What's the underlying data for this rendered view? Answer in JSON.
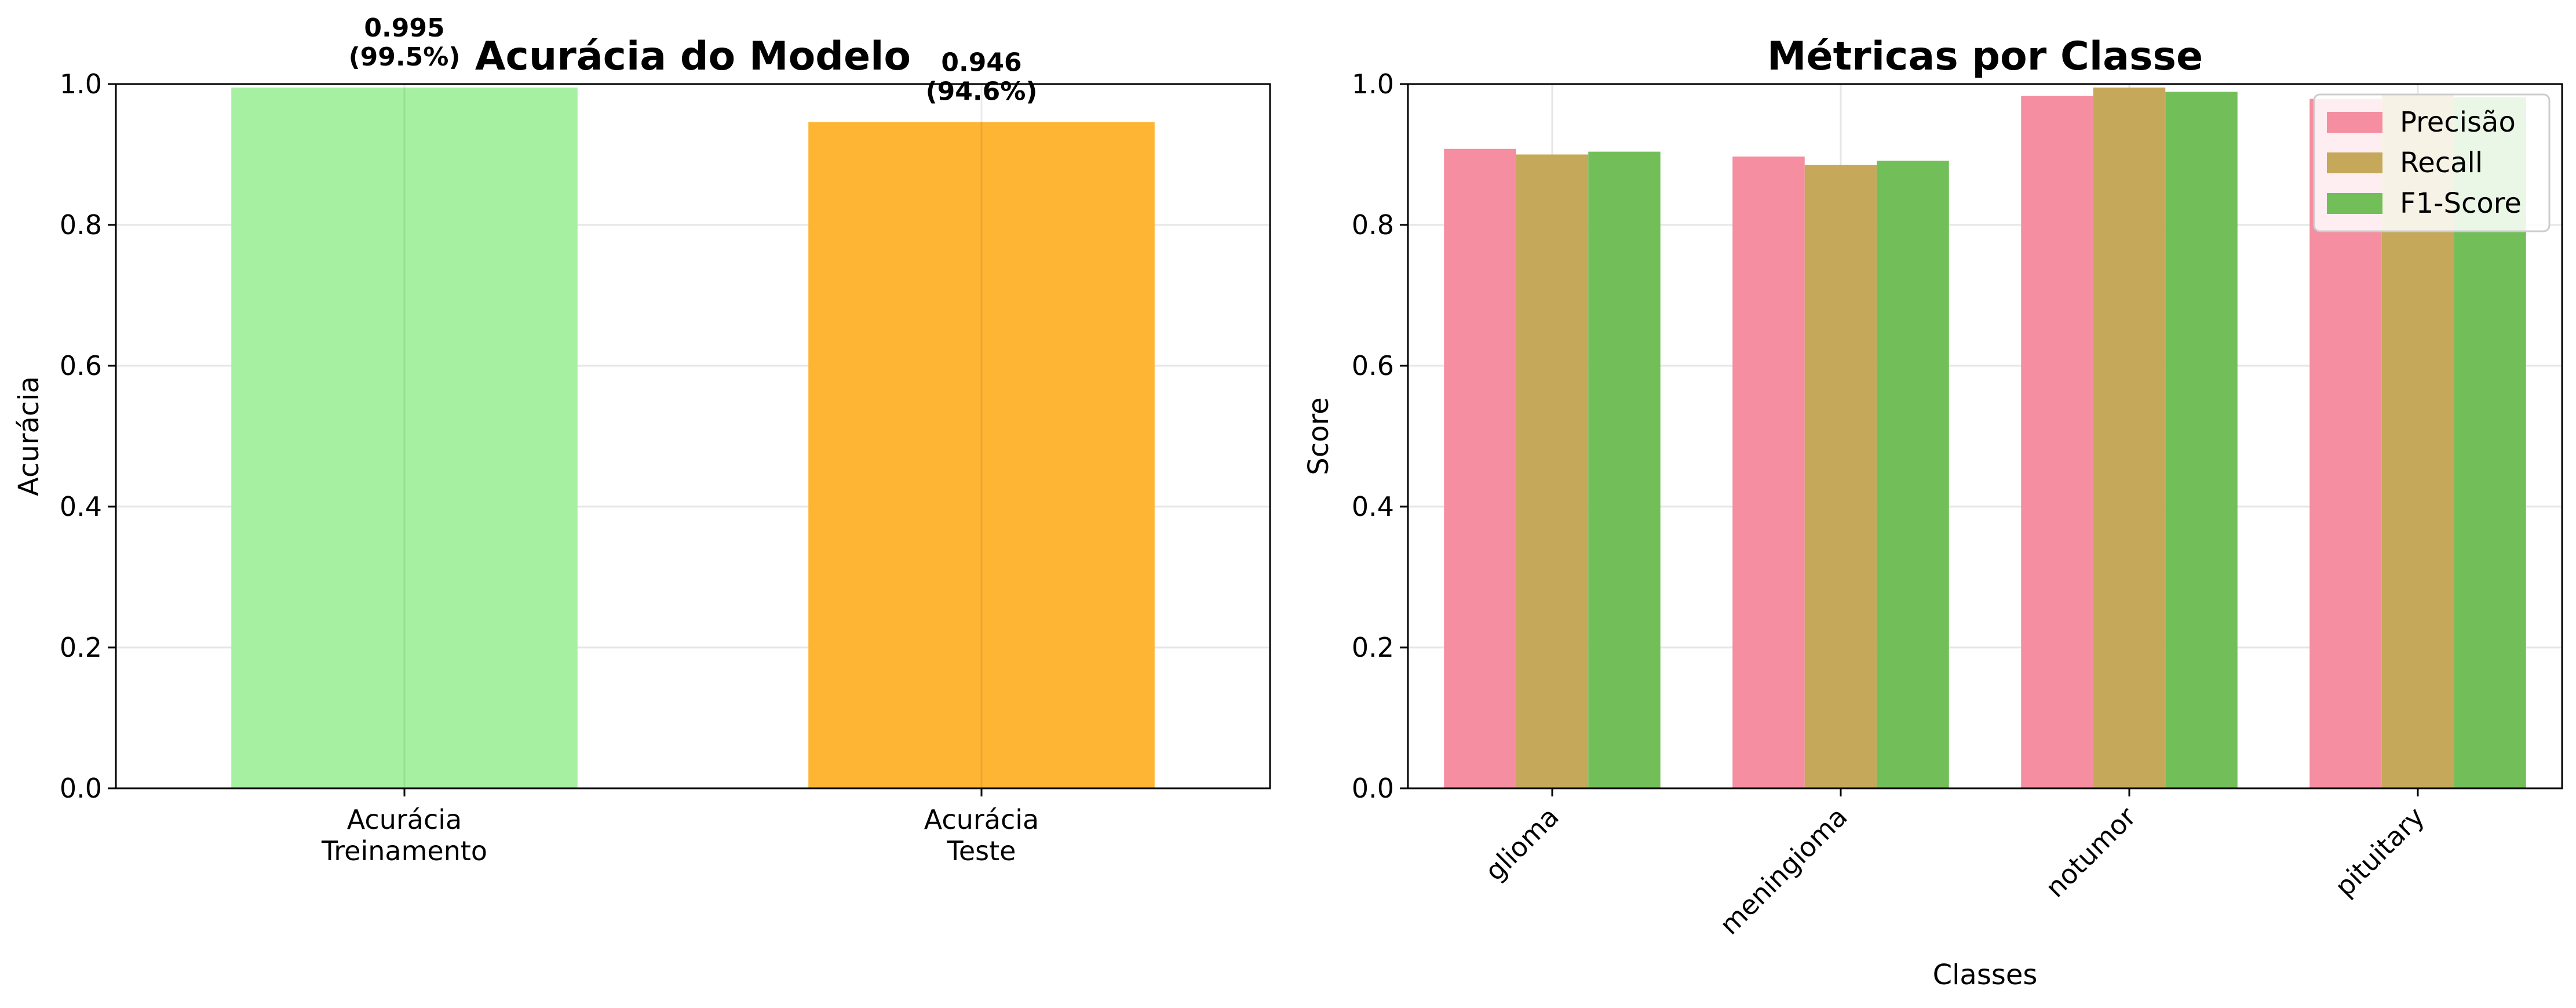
{
  "chart_data": [
    {
      "type": "bar",
      "title": "Acurácia do Modelo",
      "xlabel": "",
      "ylabel": "Acurácia",
      "ylim": [
        0,
        1.0
      ],
      "yticks": [
        "0.0",
        "0.2",
        "0.4",
        "0.6",
        "0.8",
        "1.0"
      ],
      "grid": true,
      "categories": [
        "Acurácia\nTreinamento",
        "Acurácia\nTeste"
      ],
      "values": [
        0.995,
        0.946
      ],
      "colors": [
        "#a6f0a2",
        "#ffb534"
      ],
      "data_labels": [
        [
          "0.995",
          "(99.5%)"
        ],
        [
          "0.946",
          "(94.6%)"
        ]
      ]
    },
    {
      "type": "bar",
      "title": "Métricas por Classe",
      "xlabel": "Classes",
      "ylabel": "Score",
      "ylim": [
        0,
        1.0
      ],
      "yticks": [
        "0.0",
        "0.2",
        "0.4",
        "0.6",
        "0.8",
        "1.0"
      ],
      "grid": true,
      "legend_position": "top-right",
      "categories": [
        "glioma",
        "meningioma",
        "notumor",
        "pituitary"
      ],
      "series": [
        {
          "name": "Precisão",
          "color": "#f58ea0",
          "values": [
            0.908,
            0.897,
            0.983,
            0.979
          ]
        },
        {
          "name": "Recall",
          "color": "#c5a85a",
          "values": [
            0.9,
            0.885,
            0.995,
            0.985
          ]
        },
        {
          "name": "F1-Score",
          "color": "#72bf5a",
          "values": [
            0.904,
            0.891,
            0.989,
            0.981
          ]
        }
      ]
    }
  ]
}
